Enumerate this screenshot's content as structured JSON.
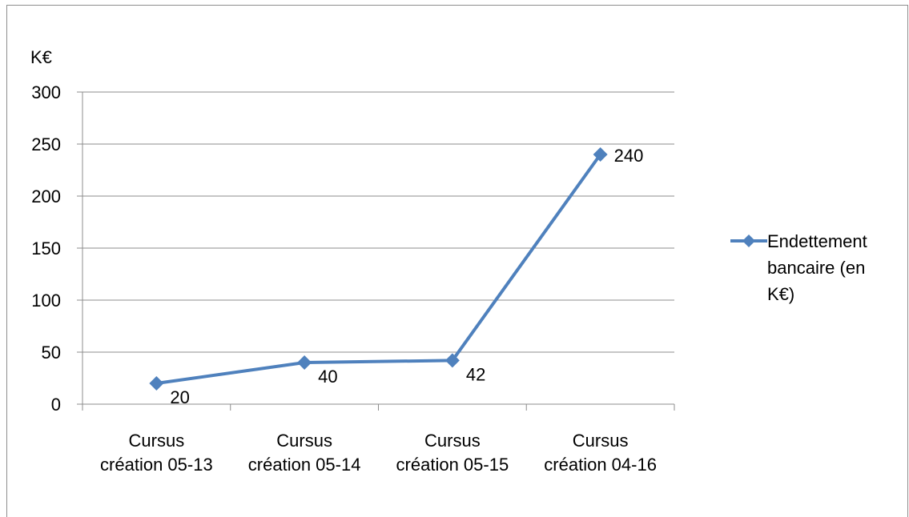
{
  "chart_data": {
    "type": "line",
    "categories": [
      [
        "Cursus",
        "création 05-13"
      ],
      [
        "Cursus",
        "création 05-14"
      ],
      [
        "Cursus",
        "création 05-15"
      ],
      [
        "Cursus",
        "création 04-16"
      ]
    ],
    "series": [
      {
        "name": [
          "Endettement",
          "bancaire (en",
          "K€)"
        ],
        "values": [
          20,
          40,
          42,
          240
        ],
        "data_labels": [
          "20",
          "40",
          "42",
          "240"
        ],
        "color": "#4f81bd"
      }
    ],
    "yunit": "K€",
    "ylim": [
      0,
      300
    ],
    "yticks": [
      0,
      50,
      100,
      150,
      200,
      250,
      300
    ],
    "ytick_labels": [
      "0",
      "50",
      "100",
      "150",
      "200",
      "250",
      "300"
    ],
    "grid": true,
    "gridline_color": "#8c8c8c",
    "legend_position": "right",
    "marker": "diamond"
  }
}
